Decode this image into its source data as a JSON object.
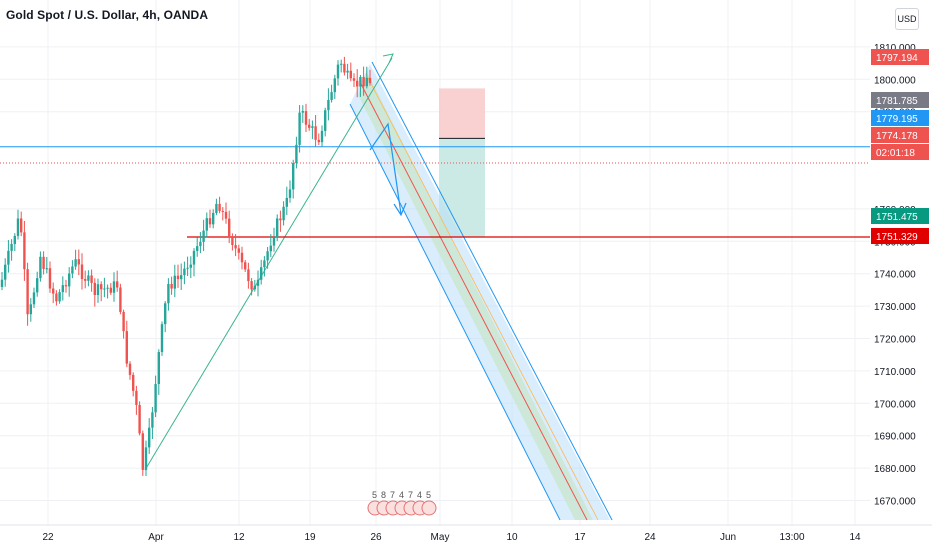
{
  "header": {
    "title": "Gold Spot / U.S. Dollar, 4h, OANDA",
    "currency": "USD"
  },
  "colors": {
    "up": "#26a69a",
    "down": "#ef5350",
    "blue_line": "#2196f3",
    "red_line": "#e00000",
    "trend": "#3bb58f",
    "channel_fill": "#bbdefb",
    "channel_mid": "#c8e6c9",
    "stop_zone": "#f9c9c9",
    "target_zone": "#c5e8e2"
  },
  "chart_data": {
    "type": "candlestick",
    "symbol": "Gold Spot / U.S. Dollar",
    "interval": "4h",
    "exchange": "OANDA",
    "y_axis": {
      "ticks": [
        "1670.000",
        "1680.000",
        "1690.000",
        "1700.000",
        "1710.000",
        "1720.000",
        "1730.000",
        "1740.000",
        "1750.000",
        "1760.000",
        "1790.000",
        "1800.000",
        "1810.000"
      ],
      "range": [
        1666,
        1813
      ]
    },
    "x_axis": {
      "ticks": [
        "22",
        "Apr",
        "12",
        "19",
        "26",
        "May",
        "10",
        "17",
        "24",
        "Jun",
        "13:00",
        "14"
      ]
    },
    "horizontal_lines": [
      {
        "name": "blue",
        "value": 1779.195
      },
      {
        "name": "red",
        "value": 1751.329
      },
      {
        "name": "current_price_dotted",
        "value": 1774.178
      }
    ],
    "price_labels": [
      {
        "text": "1797.194",
        "value": 1797.194,
        "color": "#ef5350"
      },
      {
        "text": "1781.785",
        "value": 1781.785,
        "color": "#787b86"
      },
      {
        "text": "1779.195",
        "value": 1779.195,
        "color": "#2196f3"
      },
      {
        "text": "1774.178",
        "value": 1774.178,
        "color": "#ef5350"
      },
      {
        "text": "02:01:18",
        "value": 1771.2,
        "color": "#ef5350"
      },
      {
        "text": "1751.475",
        "value": 1751.475,
        "color": "#089981"
      },
      {
        "text": "1751.329",
        "value": 1751.329,
        "color": "#e00000"
      }
    ],
    "position": {
      "type": "short",
      "entry": 1781.785,
      "stop": 1797.194,
      "target": 1751.475
    },
    "events": [
      "5",
      "8",
      "7",
      "4",
      "7",
      "4",
      "5"
    ]
  }
}
